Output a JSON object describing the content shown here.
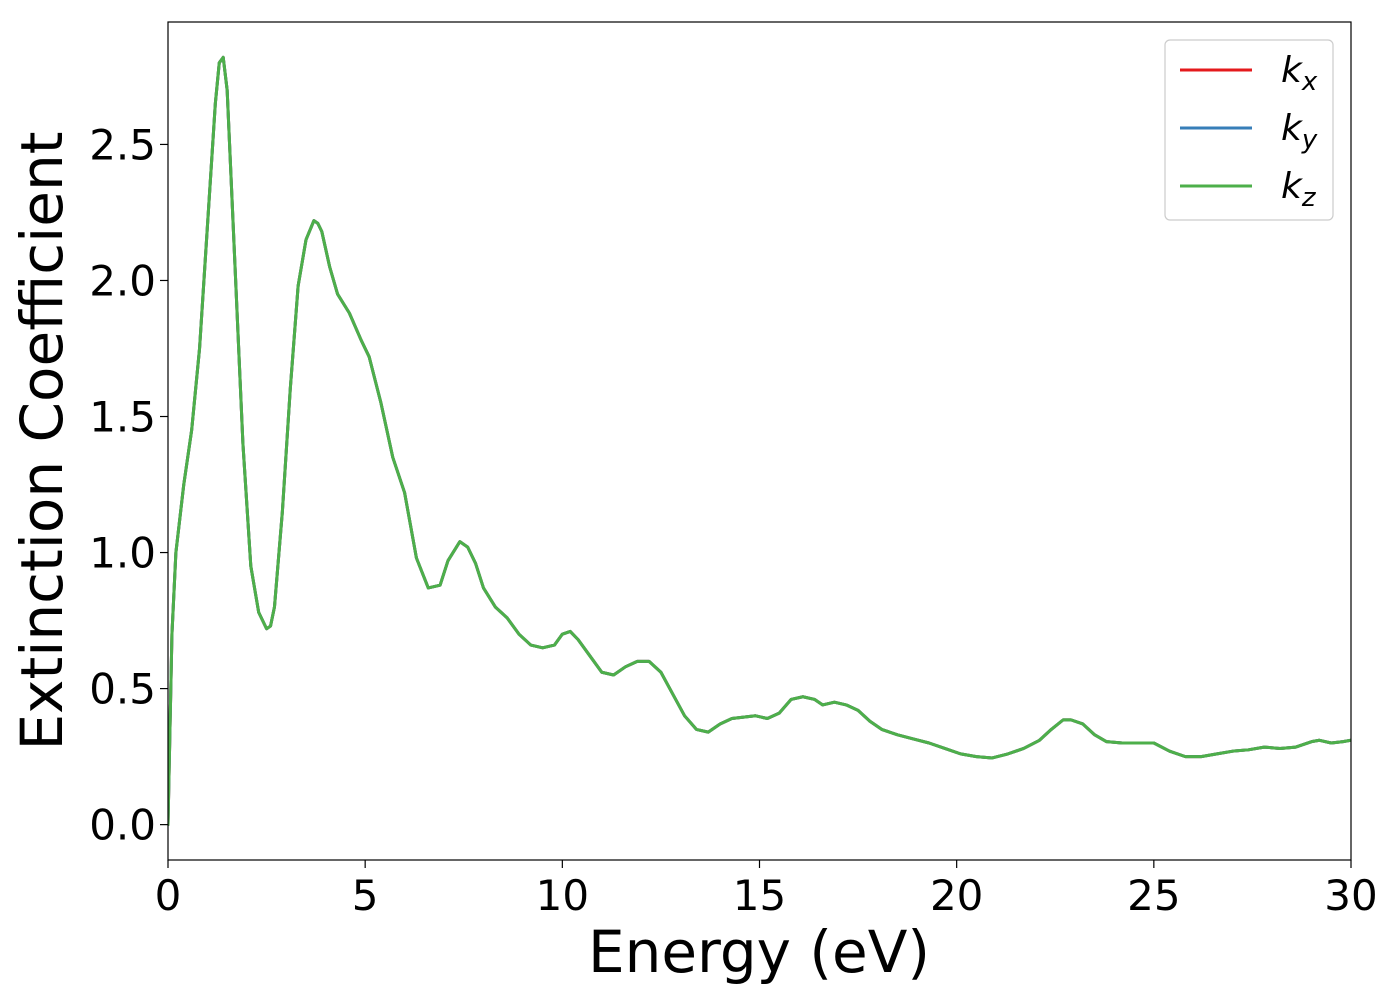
{
  "chart_data": {
    "type": "line",
    "title": "",
    "xlabel": "Energy (eV)",
    "ylabel": "Extinction Coefficient",
    "xlim": [
      0,
      30
    ],
    "ylim": [
      -0.13,
      2.95
    ],
    "xticks": [
      0,
      5,
      10,
      15,
      20,
      25,
      30
    ],
    "xtick_labels": [
      "0",
      "5",
      "10",
      "15",
      "20",
      "25",
      "30"
    ],
    "yticks": [
      0.0,
      0.5,
      1.0,
      1.5,
      2.0,
      2.5
    ],
    "ytick_labels": [
      "0.0",
      "0.5",
      "1.0",
      "1.5",
      "2.0",
      "2.5"
    ],
    "grid": false,
    "legend_position": "top-right",
    "x": [
      0,
      0.1,
      0.2,
      0.4,
      0.6,
      0.8,
      1.0,
      1.2,
      1.3,
      1.4,
      1.5,
      1.7,
      1.9,
      2.1,
      2.3,
      2.5,
      2.6,
      2.7,
      2.9,
      3.1,
      3.3,
      3.5,
      3.7,
      3.8,
      3.9,
      4.1,
      4.3,
      4.6,
      4.9,
      5.1,
      5.4,
      5.7,
      6.0,
      6.3,
      6.6,
      6.9,
      7.1,
      7.4,
      7.6,
      7.8,
      8.0,
      8.3,
      8.6,
      8.9,
      9.2,
      9.5,
      9.8,
      10.0,
      10.2,
      10.4,
      10.7,
      11.0,
      11.3,
      11.6,
      11.9,
      12.2,
      12.5,
      12.8,
      13.1,
      13.4,
      13.7,
      14.0,
      14.3,
      14.6,
      14.9,
      15.2,
      15.5,
      15.8,
      16.1,
      16.4,
      16.6,
      16.9,
      17.2,
      17.5,
      17.8,
      18.1,
      18.5,
      18.9,
      19.3,
      19.7,
      20.1,
      20.5,
      20.9,
      21.3,
      21.7,
      22.1,
      22.4,
      22.7,
      22.9,
      23.2,
      23.5,
      23.8,
      24.2,
      24.6,
      25.0,
      25.4,
      25.8,
      26.2,
      26.6,
      27.0,
      27.4,
      27.8,
      28.2,
      28.6,
      29.0,
      29.2,
      29.5,
      29.8,
      30.0
    ],
    "series": [
      {
        "name": "k_x",
        "color": "#e41a1c",
        "values": [
          0.0,
          0.7,
          1.0,
          1.25,
          1.45,
          1.75,
          2.2,
          2.65,
          2.8,
          2.82,
          2.7,
          2.05,
          1.4,
          0.95,
          0.78,
          0.72,
          0.73,
          0.8,
          1.15,
          1.6,
          1.98,
          2.15,
          2.22,
          2.21,
          2.18,
          2.05,
          1.95,
          1.88,
          1.78,
          1.72,
          1.55,
          1.35,
          1.22,
          0.98,
          0.87,
          0.88,
          0.97,
          1.04,
          1.02,
          0.96,
          0.87,
          0.8,
          0.76,
          0.7,
          0.66,
          0.65,
          0.66,
          0.7,
          0.71,
          0.68,
          0.62,
          0.56,
          0.55,
          0.58,
          0.6,
          0.6,
          0.56,
          0.48,
          0.4,
          0.35,
          0.34,
          0.37,
          0.39,
          0.395,
          0.4,
          0.39,
          0.41,
          0.46,
          0.47,
          0.46,
          0.44,
          0.45,
          0.44,
          0.42,
          0.38,
          0.35,
          0.33,
          0.315,
          0.3,
          0.28,
          0.26,
          0.25,
          0.245,
          0.26,
          0.28,
          0.31,
          0.35,
          0.385,
          0.385,
          0.37,
          0.33,
          0.305,
          0.3,
          0.3,
          0.3,
          0.27,
          0.25,
          0.25,
          0.26,
          0.27,
          0.275,
          0.285,
          0.28,
          0.285,
          0.305,
          0.31,
          0.3,
          0.305,
          0.31
        ]
      },
      {
        "name": "k_y",
        "color": "#377eb8",
        "values": [
          0.0,
          0.7,
          1.0,
          1.25,
          1.45,
          1.75,
          2.2,
          2.65,
          2.8,
          2.82,
          2.7,
          2.05,
          1.4,
          0.95,
          0.78,
          0.72,
          0.73,
          0.8,
          1.15,
          1.6,
          1.98,
          2.15,
          2.22,
          2.21,
          2.18,
          2.05,
          1.95,
          1.88,
          1.78,
          1.72,
          1.55,
          1.35,
          1.22,
          0.98,
          0.87,
          0.88,
          0.97,
          1.04,
          1.02,
          0.96,
          0.87,
          0.8,
          0.76,
          0.7,
          0.66,
          0.65,
          0.66,
          0.7,
          0.71,
          0.68,
          0.62,
          0.56,
          0.55,
          0.58,
          0.6,
          0.6,
          0.56,
          0.48,
          0.4,
          0.35,
          0.34,
          0.37,
          0.39,
          0.395,
          0.4,
          0.39,
          0.41,
          0.46,
          0.47,
          0.46,
          0.44,
          0.45,
          0.44,
          0.42,
          0.38,
          0.35,
          0.33,
          0.315,
          0.3,
          0.28,
          0.26,
          0.25,
          0.245,
          0.26,
          0.28,
          0.31,
          0.35,
          0.385,
          0.385,
          0.37,
          0.33,
          0.305,
          0.3,
          0.3,
          0.3,
          0.27,
          0.25,
          0.25,
          0.26,
          0.27,
          0.275,
          0.285,
          0.28,
          0.285,
          0.305,
          0.31,
          0.3,
          0.305,
          0.31
        ]
      },
      {
        "name": "k_z",
        "color": "#4daf4a",
        "values": [
          0.0,
          0.7,
          1.0,
          1.25,
          1.45,
          1.75,
          2.2,
          2.65,
          2.8,
          2.82,
          2.7,
          2.05,
          1.4,
          0.95,
          0.78,
          0.72,
          0.73,
          0.8,
          1.15,
          1.6,
          1.98,
          2.15,
          2.22,
          2.21,
          2.18,
          2.05,
          1.95,
          1.88,
          1.78,
          1.72,
          1.55,
          1.35,
          1.22,
          0.98,
          0.87,
          0.88,
          0.97,
          1.04,
          1.02,
          0.96,
          0.87,
          0.8,
          0.76,
          0.7,
          0.66,
          0.65,
          0.66,
          0.7,
          0.71,
          0.68,
          0.62,
          0.56,
          0.55,
          0.58,
          0.6,
          0.6,
          0.56,
          0.48,
          0.4,
          0.35,
          0.34,
          0.37,
          0.39,
          0.395,
          0.4,
          0.39,
          0.41,
          0.46,
          0.47,
          0.46,
          0.44,
          0.45,
          0.44,
          0.42,
          0.38,
          0.35,
          0.33,
          0.315,
          0.3,
          0.28,
          0.26,
          0.25,
          0.245,
          0.26,
          0.28,
          0.31,
          0.35,
          0.385,
          0.385,
          0.37,
          0.33,
          0.305,
          0.3,
          0.3,
          0.3,
          0.27,
          0.25,
          0.25,
          0.26,
          0.27,
          0.275,
          0.285,
          0.28,
          0.285,
          0.305,
          0.31,
          0.3,
          0.305,
          0.31
        ]
      }
    ],
    "legend": [
      {
        "base": "k",
        "sub": "x",
        "color": "#e41a1c"
      },
      {
        "base": "k",
        "sub": "y",
        "color": "#377eb8"
      },
      {
        "base": "k",
        "sub": "z",
        "color": "#4daf4a"
      }
    ]
  }
}
